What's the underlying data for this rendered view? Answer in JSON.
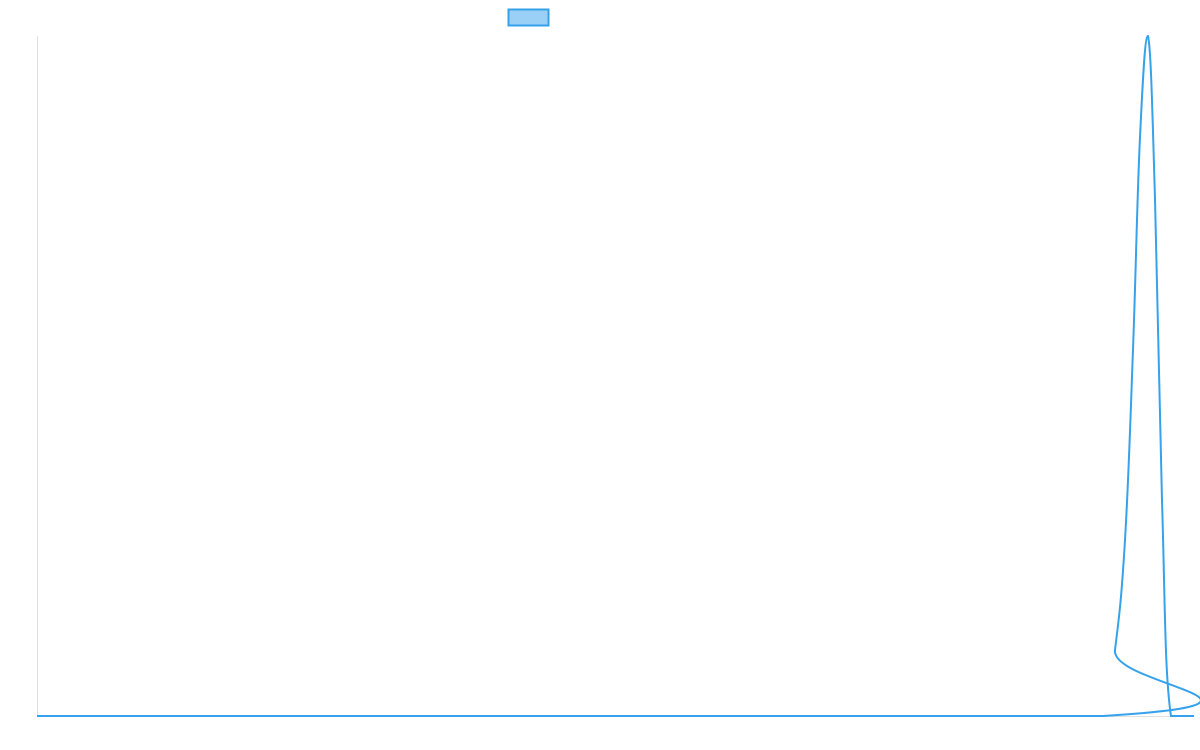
{
  "chart_data": {
    "type": "line",
    "title": "",
    "xlabel": "",
    "ylabel": "",
    "xlim": [
      0,
      100
    ],
    "ylim": [
      0,
      1
    ],
    "grid": false,
    "legend": {
      "placement": "top",
      "entries": [
        {
          "name": ""
        }
      ]
    },
    "series": [
      {
        "color": "#36a2eb",
        "fill_color": "#9ad0f5",
        "x": [
          0,
          92.13,
          93.17,
          94.04,
          94.73,
          95.33,
          96.02,
          96.63,
          97.23,
          98.01,
          100
        ],
        "y": [
          0,
          0,
          0.097,
          0.26,
          0.54,
          0.85,
          1.0,
          0.76,
          0.32,
          0,
          0
        ]
      }
    ]
  }
}
